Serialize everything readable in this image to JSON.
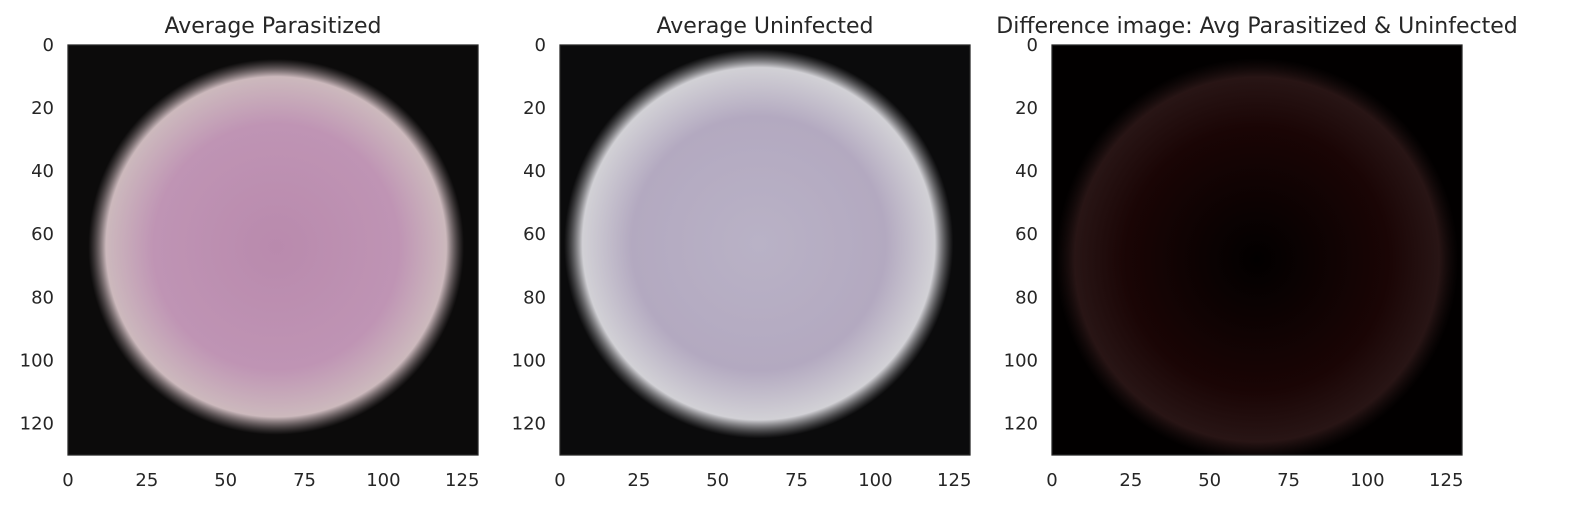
{
  "chart_data": [
    {
      "type": "heatmap",
      "title": "Average Parasitized",
      "image_size": [
        130,
        130
      ],
      "xlim": [
        0,
        130
      ],
      "ylim": [
        130,
        0
      ],
      "xticks": [
        0,
        25,
        50,
        75,
        100,
        125
      ],
      "yticks": [
        0,
        20,
        40,
        60,
        80,
        100,
        120
      ],
      "grid": false,
      "content": {
        "background_color": "#0c0b0b",
        "blob_center": [
          66,
          64
        ],
        "blob_radius": 56,
        "edge_color": "#d6c2c6",
        "fill_color": "#bf94b4",
        "core_color": "#b98aad"
      }
    },
    {
      "type": "heatmap",
      "title": "Average Uninfected",
      "image_size": [
        130,
        130
      ],
      "xlim": [
        0,
        130
      ],
      "ylim": [
        130,
        0
      ],
      "xticks": [
        0,
        25,
        50,
        75,
        100,
        125
      ],
      "yticks": [
        0,
        20,
        40,
        60,
        80,
        100,
        120
      ],
      "grid": false,
      "content": {
        "background_color": "#0b0b0c",
        "blob_center": [
          63,
          63
        ],
        "blob_radius": 58,
        "edge_color": "#dcdbe0",
        "fill_color": "#b3a9c0",
        "core_color": "#b9b2c6"
      }
    },
    {
      "type": "heatmap",
      "title": "Difference image: Avg Parasitized & Uninfected",
      "image_size": [
        130,
        130
      ],
      "xlim": [
        0,
        130
      ],
      "ylim": [
        130,
        0
      ],
      "xticks": [
        0,
        25,
        50,
        75,
        100,
        125
      ],
      "yticks": [
        0,
        20,
        40,
        60,
        80,
        100,
        120
      ],
      "grid": false,
      "content": {
        "background_color": "#020000",
        "blob_center": [
          65,
          68
        ],
        "blob_radius": 60,
        "edge_color": "#2a1616",
        "fill_color": "#1a0505",
        "core_color": "#020000"
      }
    }
  ]
}
